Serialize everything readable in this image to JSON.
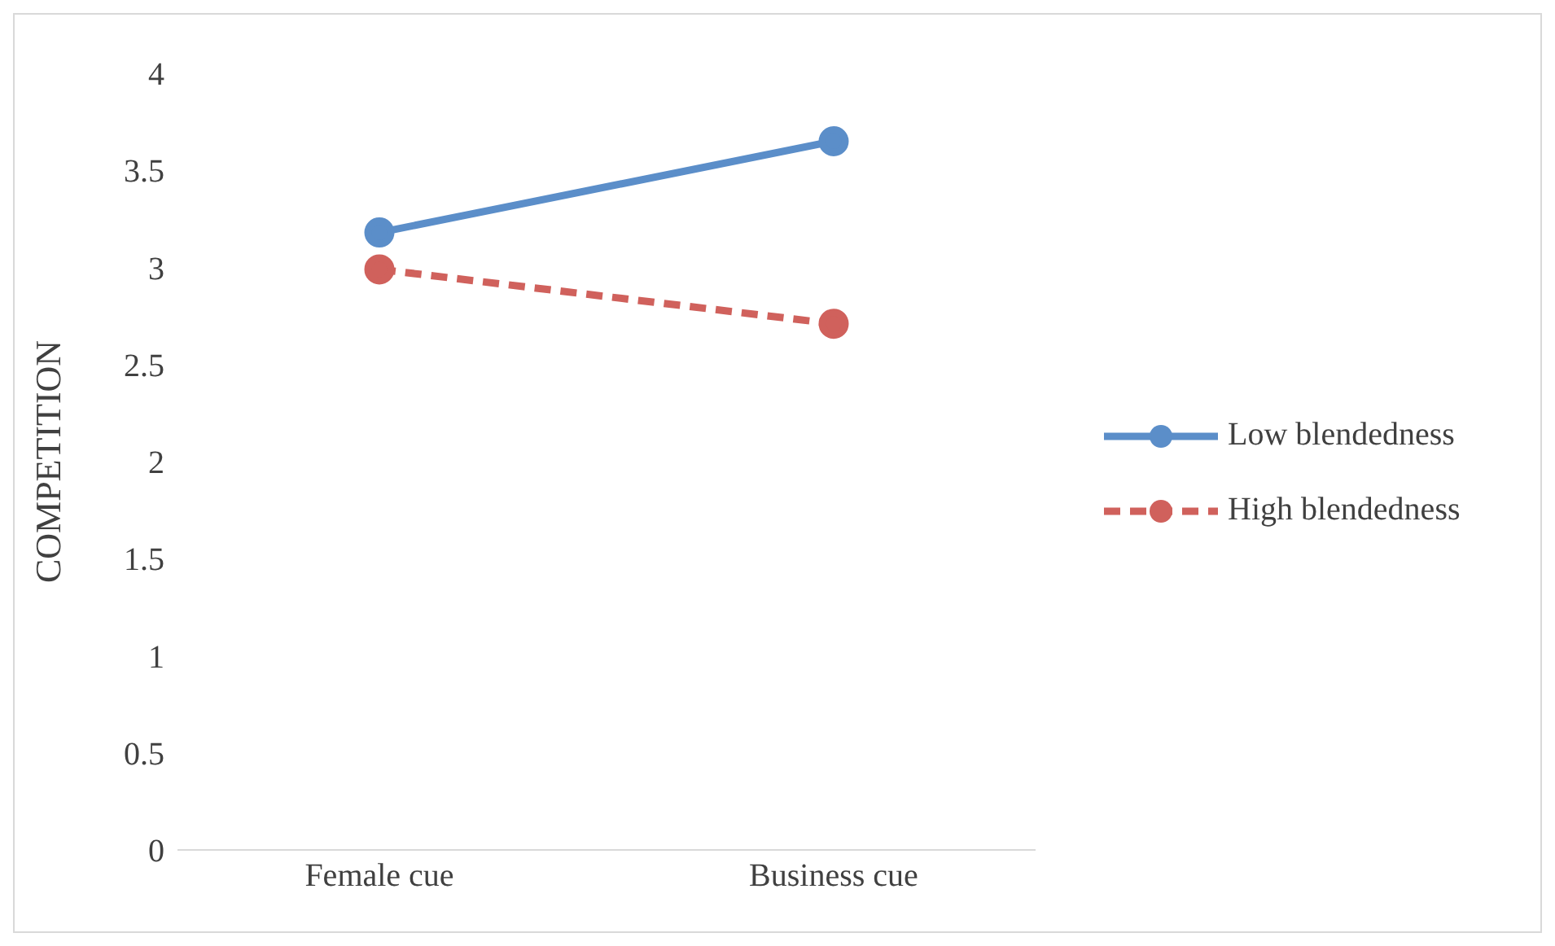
{
  "chart_data": {
    "type": "line",
    "ylabel": "COMPETITION",
    "categories": [
      "Female cue",
      "Business cue"
    ],
    "series": [
      {
        "name": "Low blendedness",
        "color": "#5b8ec9",
        "values": [
          3.18,
          3.65
        ],
        "line_style": "solid"
      },
      {
        "name": "High blendedness",
        "color": "#d0615c",
        "values": [
          2.99,
          2.71
        ],
        "line_style": "dashed"
      }
    ],
    "ylim": [
      0,
      4
    ],
    "yticks": [
      0,
      0.5,
      1,
      1.5,
      2,
      2.5,
      3,
      3.5,
      4
    ],
    "grid": false,
    "legend": "right",
    "marker": "circle"
  }
}
